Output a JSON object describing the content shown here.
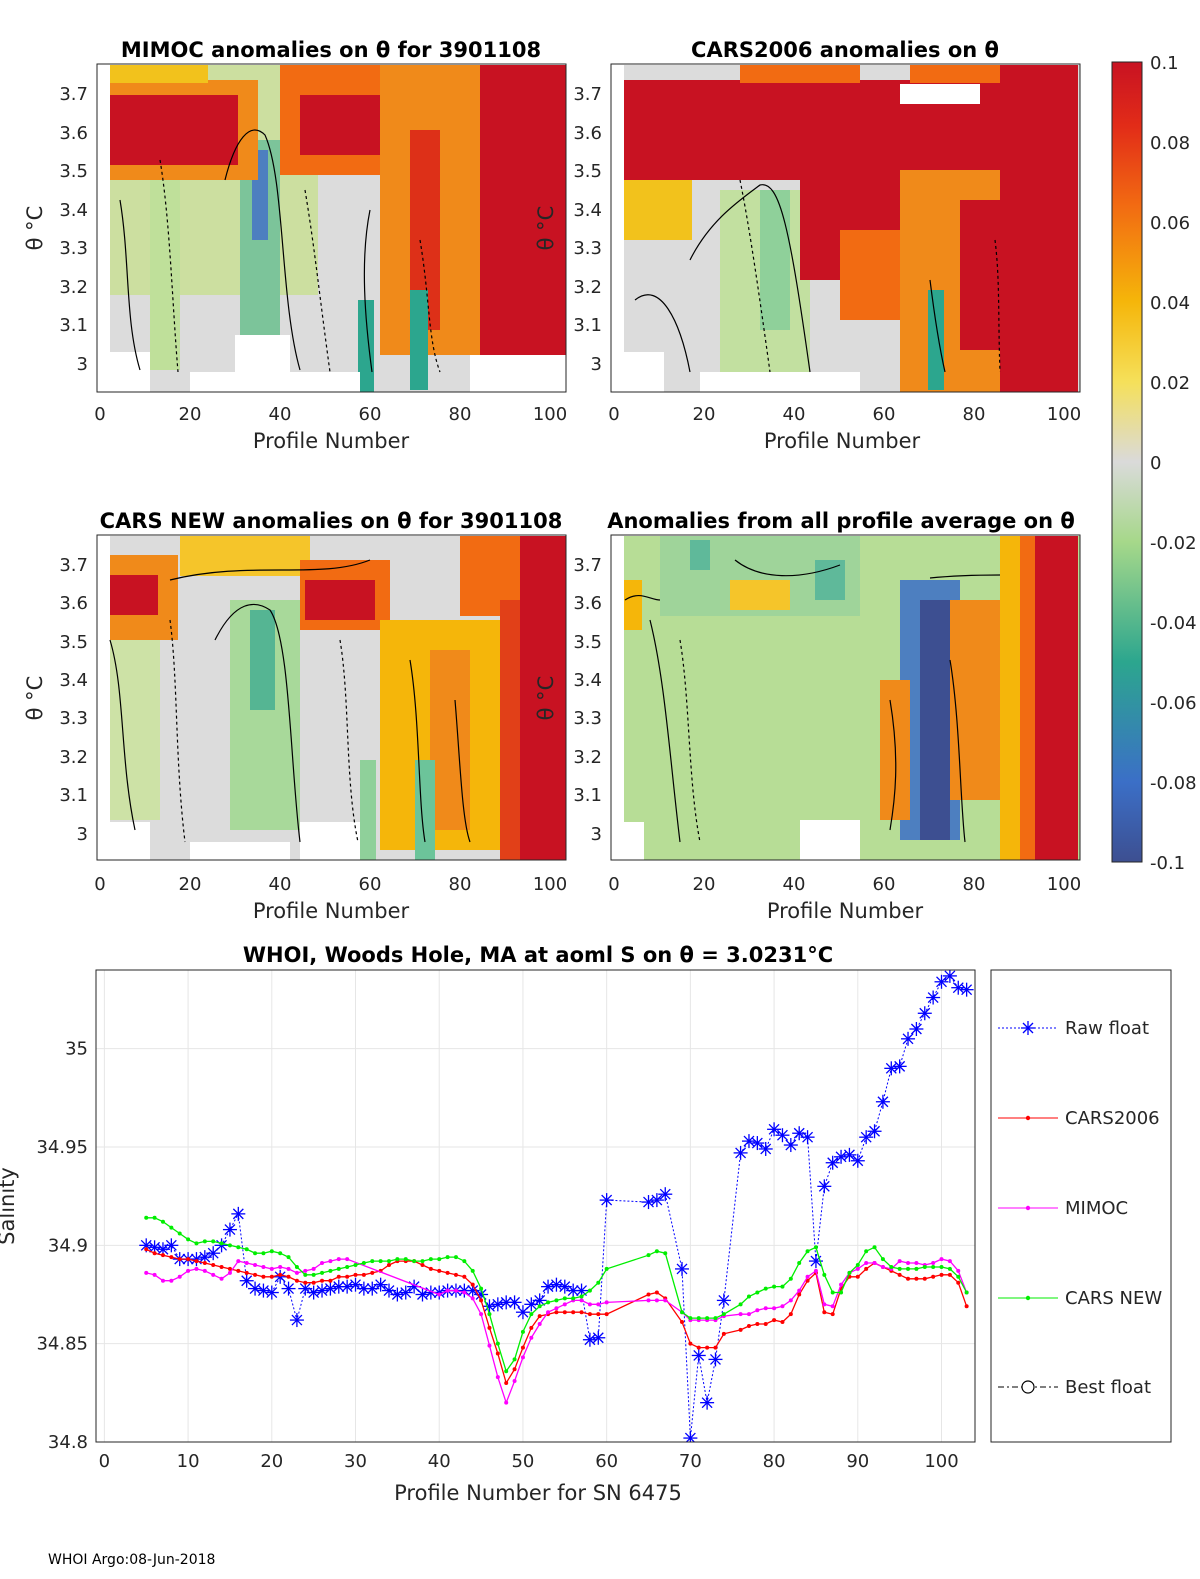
{
  "footer": "WHOI Argo:08-Jun-2018",
  "colorbar": {
    "ticks": [
      "0.1",
      "0.08",
      "0.06",
      "0.04",
      "0.02",
      "0",
      "-0.02",
      "-0.04",
      "-0.06",
      "-0.08",
      "-0.1"
    ],
    "range": [
      -0.1,
      0.1
    ]
  },
  "panels": [
    {
      "id": "mimoc",
      "title": "MIMOC anomalies on θ  for 3901108",
      "xlabel": "Profile Number",
      "ylabel": "θ °C",
      "xticks": [
        "0",
        "20",
        "40",
        "60",
        "80",
        "100"
      ],
      "yticks": [
        "3.7",
        "3.6",
        "3.5",
        "3.4",
        "3.3",
        "3.2",
        "3.1",
        "3"
      ]
    },
    {
      "id": "cars2006",
      "title": "CARS2006 anomalies on θ",
      "xlabel": "Profile Number",
      "ylabel": "θ °C",
      "xticks": [
        "0",
        "20",
        "40",
        "60",
        "80",
        "100"
      ],
      "yticks": [
        "3.7",
        "3.6",
        "3.5",
        "3.4",
        "3.3",
        "3.2",
        "3.1",
        "3"
      ]
    },
    {
      "id": "carsnew",
      "title": "CARS NEW anomalies on θ for 3901108",
      "xlabel": "Profile Number",
      "ylabel": "θ °C",
      "xticks": [
        "0",
        "20",
        "40",
        "60",
        "80",
        "100"
      ],
      "yticks": [
        "3.7",
        "3.6",
        "3.5",
        "3.4",
        "3.3",
        "3.2",
        "3.1",
        "3"
      ]
    },
    {
      "id": "profileavg",
      "title": "Anomalies from all profile average on θ",
      "xlabel": "Profile Number",
      "ylabel": "θ °C",
      "xticks": [
        "0",
        "20",
        "40",
        "60",
        "80",
        "100"
      ],
      "yticks": [
        "3.7",
        "3.6",
        "3.5",
        "3.4",
        "3.3",
        "3.2",
        "3.1",
        "3"
      ]
    }
  ],
  "chart_data": {
    "type": "line",
    "title": "WHOI, Woods Hole, MA at aoml S on θ = 3.0231°C",
    "xlabel": "Profile Number for SN 6475",
    "ylabel": "Salinity",
    "xlim": [
      -1,
      104
    ],
    "ylim": [
      34.8,
      35.04
    ],
    "xticks": [
      "0",
      "10",
      "20",
      "30",
      "40",
      "50",
      "60",
      "70",
      "80",
      "90",
      "100"
    ],
    "yticks": [
      "34.8",
      "34.85",
      "34.9",
      "34.95",
      "35"
    ],
    "legend": [
      "Raw float",
      "CARS2006",
      "MIMOC",
      "CARS NEW",
      "Best float"
    ],
    "series": [
      {
        "name": "Raw float",
        "color": "#0000ff",
        "marker": "star",
        "x": [
          5,
          6,
          7,
          8,
          9,
          10,
          11,
          12,
          13,
          14,
          15,
          16,
          17,
          18,
          19,
          20,
          21,
          22,
          23,
          24,
          25,
          26,
          27,
          28,
          29,
          30,
          31,
          32,
          33,
          34,
          35,
          36,
          37,
          38,
          39,
          40,
          41,
          42,
          43,
          44,
          45,
          46,
          47,
          48,
          49,
          50,
          51,
          52,
          53,
          54,
          55,
          56,
          57,
          58,
          59,
          60,
          65,
          66,
          67,
          69,
          70,
          71,
          72,
          73,
          74,
          76,
          77,
          78,
          79,
          80,
          81,
          82,
          83,
          84,
          85,
          86,
          87,
          88,
          89,
          90,
          91,
          92,
          93,
          94,
          95,
          96,
          97,
          98,
          99,
          100,
          101,
          102,
          103
        ],
        "y": [
          34.9,
          34.899,
          34.898,
          34.9,
          34.893,
          34.893,
          34.893,
          34.894,
          34.896,
          34.9,
          34.908,
          34.916,
          34.882,
          34.878,
          34.877,
          34.876,
          34.884,
          34.878,
          34.862,
          34.878,
          34.876,
          34.877,
          34.878,
          34.879,
          34.879,
          34.88,
          34.878,
          34.878,
          34.88,
          34.877,
          34.875,
          34.876,
          34.879,
          34.875,
          34.876,
          34.876,
          34.877,
          34.877,
          34.877,
          34.877,
          34.875,
          34.869,
          34.87,
          34.871,
          34.871,
          34.866,
          34.87,
          34.872,
          34.879,
          34.88,
          34.879,
          34.877,
          34.877,
          34.852,
          34.853,
          34.923,
          34.922,
          34.923,
          34.926,
          34.888,
          34.802,
          34.844,
          34.82,
          34.842,
          34.872,
          34.947,
          34.953,
          34.952,
          34.949,
          34.959,
          34.956,
          34.951,
          34.957,
          34.955,
          34.892,
          34.93,
          34.942,
          34.945,
          34.946,
          34.943,
          34.955,
          34.958,
          34.973,
          34.99,
          34.991,
          35.005,
          35.01,
          35.018,
          35.026,
          35.034,
          35.037,
          35.031,
          35.03
        ]
      },
      {
        "name": "CARS2006",
        "color": "#ff0000",
        "marker": "dot",
        "x": [
          5,
          6,
          7,
          8,
          9,
          10,
          11,
          12,
          13,
          14,
          15,
          16,
          17,
          18,
          19,
          20,
          21,
          22,
          23,
          24,
          25,
          26,
          27,
          28,
          29,
          30,
          31,
          32,
          33,
          34,
          35,
          36,
          37,
          38,
          39,
          40,
          41,
          42,
          43,
          44,
          45,
          46,
          47,
          48,
          49,
          50,
          51,
          52,
          53,
          54,
          55,
          56,
          57,
          58,
          59,
          60,
          65,
          66,
          67,
          69,
          70,
          71,
          72,
          73,
          74,
          76,
          77,
          78,
          79,
          80,
          81,
          82,
          83,
          84,
          85,
          86,
          87,
          88,
          89,
          90,
          91,
          92,
          93,
          94,
          95,
          96,
          97,
          98,
          99,
          100,
          101,
          102,
          103
        ],
        "y": [
          34.898,
          34.896,
          34.895,
          34.894,
          34.893,
          34.893,
          34.892,
          34.891,
          34.89,
          34.889,
          34.888,
          34.887,
          34.886,
          34.885,
          34.884,
          34.884,
          34.885,
          34.884,
          34.882,
          34.881,
          34.881,
          34.882,
          34.882,
          34.884,
          34.884,
          34.885,
          34.885,
          34.886,
          34.887,
          34.89,
          34.892,
          34.892,
          34.892,
          34.89,
          34.888,
          34.887,
          34.886,
          34.885,
          34.884,
          34.88,
          34.872,
          34.858,
          34.845,
          34.83,
          34.837,
          34.848,
          34.858,
          34.864,
          34.865,
          34.866,
          34.866,
          34.866,
          34.866,
          34.865,
          34.865,
          34.865,
          34.875,
          34.876,
          34.873,
          34.861,
          34.85,
          34.848,
          34.848,
          34.848,
          34.855,
          34.857,
          34.859,
          34.86,
          34.86,
          34.862,
          34.861,
          34.865,
          34.875,
          34.882,
          34.886,
          34.866,
          34.865,
          34.878,
          34.884,
          34.884,
          34.888,
          34.891,
          34.889,
          34.887,
          34.885,
          34.883,
          34.883,
          34.883,
          34.884,
          34.885,
          34.885,
          34.881,
          34.869
        ]
      },
      {
        "name": "MIMOC",
        "color": "#ff00ff",
        "marker": "dot",
        "x": [
          5,
          6,
          7,
          8,
          9,
          10,
          11,
          12,
          13,
          14,
          15,
          16,
          17,
          18,
          19,
          20,
          21,
          22,
          23,
          24,
          25,
          26,
          27,
          28,
          29,
          40,
          41,
          42,
          43,
          44,
          45,
          46,
          47,
          48,
          49,
          50,
          51,
          52,
          53,
          54,
          55,
          56,
          57,
          58,
          59,
          60,
          65,
          66,
          67,
          69,
          70,
          71,
          72,
          73,
          74,
          76,
          77,
          78,
          79,
          80,
          81,
          82,
          83,
          84,
          85,
          86,
          87,
          88,
          89,
          90,
          91,
          92,
          93,
          94,
          95,
          96,
          97,
          98,
          99,
          100,
          101,
          102,
          103
        ],
        "y": [
          34.886,
          34.885,
          34.882,
          34.882,
          34.884,
          34.887,
          34.888,
          34.887,
          34.885,
          34.883,
          34.886,
          34.892,
          34.891,
          34.89,
          34.889,
          34.888,
          34.889,
          34.888,
          34.886,
          34.887,
          34.888,
          34.891,
          34.892,
          34.893,
          34.893,
          34.875,
          34.877,
          34.877,
          34.876,
          34.873,
          34.865,
          34.849,
          34.833,
          34.82,
          34.831,
          34.843,
          34.853,
          34.86,
          34.866,
          34.868,
          34.87,
          34.872,
          34.872,
          34.87,
          34.87,
          34.871,
          34.872,
          34.872,
          34.872,
          34.866,
          34.862,
          34.862,
          34.862,
          34.862,
          34.864,
          34.865,
          34.865,
          34.867,
          34.868,
          34.868,
          34.869,
          34.872,
          34.877,
          34.884,
          34.887,
          34.87,
          34.869,
          34.88,
          34.886,
          34.888,
          34.891,
          34.891,
          34.889,
          34.888,
          34.892,
          34.891,
          34.891,
          34.89,
          34.891,
          34.893,
          34.892,
          34.887,
          34.876
        ]
      },
      {
        "name": "CARS NEW",
        "color": "#00ee00",
        "marker": "dot",
        "x": [
          5,
          6,
          7,
          8,
          9,
          10,
          11,
          12,
          13,
          14,
          15,
          16,
          17,
          18,
          19,
          20,
          21,
          22,
          23,
          24,
          25,
          26,
          27,
          28,
          29,
          30,
          31,
          32,
          33,
          34,
          35,
          36,
          37,
          38,
          39,
          40,
          41,
          42,
          43,
          44,
          45,
          46,
          47,
          48,
          49,
          50,
          51,
          52,
          53,
          54,
          55,
          56,
          57,
          58,
          59,
          60,
          65,
          66,
          67,
          69,
          70,
          71,
          72,
          73,
          74,
          76,
          77,
          78,
          79,
          80,
          81,
          82,
          83,
          84,
          85,
          86,
          87,
          88,
          89,
          90,
          91,
          92,
          93,
          94,
          95,
          96,
          97,
          98,
          99,
          100,
          101,
          102,
          103
        ],
        "y": [
          34.914,
          34.914,
          34.912,
          34.909,
          34.906,
          34.903,
          34.901,
          34.902,
          34.902,
          34.901,
          34.9,
          34.899,
          34.898,
          34.896,
          34.896,
          34.897,
          34.896,
          34.894,
          34.889,
          34.885,
          34.885,
          34.886,
          34.887,
          34.888,
          34.889,
          34.89,
          34.891,
          34.892,
          34.892,
          34.892,
          34.893,
          34.893,
          34.892,
          34.892,
          34.893,
          34.893,
          34.894,
          34.894,
          34.892,
          34.887,
          34.878,
          34.865,
          34.85,
          34.836,
          34.842,
          34.856,
          34.865,
          34.869,
          34.871,
          34.872,
          34.873,
          34.873,
          34.874,
          34.877,
          34.881,
          34.888,
          34.895,
          34.897,
          34.896,
          34.866,
          34.863,
          34.863,
          34.863,
          34.863,
          34.865,
          34.87,
          34.874,
          34.876,
          34.878,
          34.879,
          34.879,
          34.883,
          34.891,
          34.897,
          34.899,
          34.885,
          34.876,
          34.876,
          34.886,
          34.89,
          34.897,
          34.899,
          34.893,
          34.889,
          34.888,
          34.888,
          34.888,
          34.889,
          34.889,
          34.889,
          34.888,
          34.884,
          34.876
        ]
      },
      {
        "name": "Best float",
        "color": "#000000",
        "marker": "circle",
        "x": [],
        "y": []
      }
    ]
  }
}
